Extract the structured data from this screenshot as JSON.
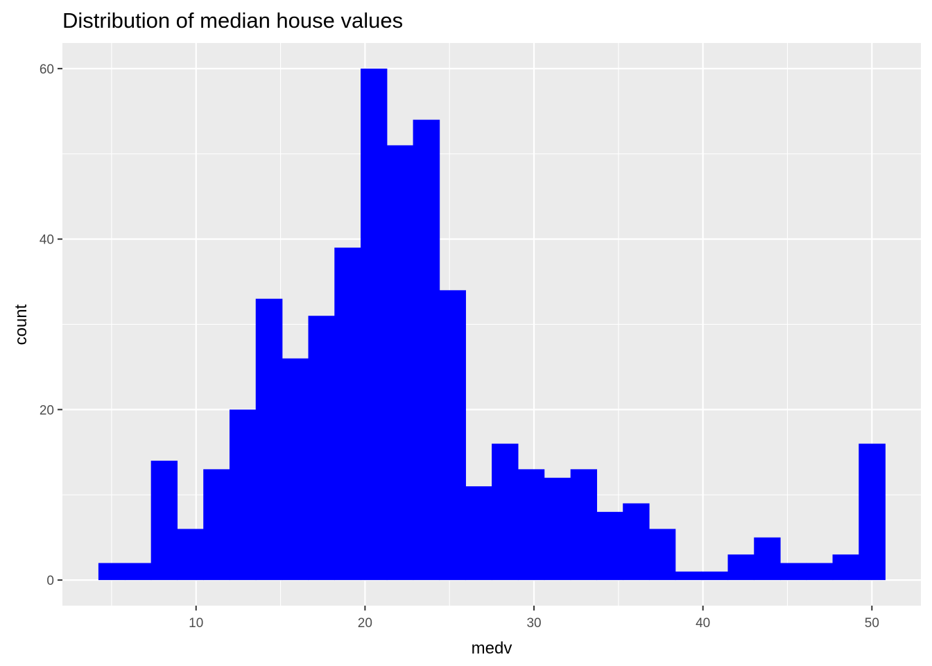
{
  "chart_data": {
    "type": "bar",
    "subtype": "histogram",
    "title": "Distribution of median house values",
    "xlabel": "medv",
    "ylabel": "count",
    "bin_width": 1.5517,
    "bins": [
      {
        "x0": 4.22,
        "x1": 5.78,
        "count": 2
      },
      {
        "x0": 5.78,
        "x1": 7.33,
        "count": 2
      },
      {
        "x0": 7.33,
        "x1": 8.88,
        "count": 14
      },
      {
        "x0": 8.88,
        "x1": 10.43,
        "count": 6
      },
      {
        "x0": 10.43,
        "x1": 11.98,
        "count": 13
      },
      {
        "x0": 11.98,
        "x1": 13.53,
        "count": 20
      },
      {
        "x0": 13.53,
        "x1": 15.09,
        "count": 33
      },
      {
        "x0": 15.09,
        "x1": 16.64,
        "count": 26
      },
      {
        "x0": 16.64,
        "x1": 18.19,
        "count": 31
      },
      {
        "x0": 18.19,
        "x1": 19.74,
        "count": 39
      },
      {
        "x0": 19.74,
        "x1": 21.29,
        "count": 60
      },
      {
        "x0": 21.29,
        "x1": 22.84,
        "count": 51
      },
      {
        "x0": 22.84,
        "x1": 24.4,
        "count": 54
      },
      {
        "x0": 24.4,
        "x1": 25.95,
        "count": 34
      },
      {
        "x0": 25.95,
        "x1": 27.5,
        "count": 11
      },
      {
        "x0": 27.5,
        "x1": 29.05,
        "count": 16
      },
      {
        "x0": 29.05,
        "x1": 30.6,
        "count": 13
      },
      {
        "x0": 30.6,
        "x1": 32.16,
        "count": 12
      },
      {
        "x0": 32.16,
        "x1": 33.71,
        "count": 13
      },
      {
        "x0": 33.71,
        "x1": 35.26,
        "count": 8
      },
      {
        "x0": 35.26,
        "x1": 36.81,
        "count": 9
      },
      {
        "x0": 36.81,
        "x1": 38.36,
        "count": 6
      },
      {
        "x0": 38.36,
        "x1": 39.91,
        "count": 1
      },
      {
        "x0": 39.91,
        "x1": 41.47,
        "count": 1
      },
      {
        "x0": 41.47,
        "x1": 43.02,
        "count": 3
      },
      {
        "x0": 43.02,
        "x1": 44.57,
        "count": 5
      },
      {
        "x0": 44.57,
        "x1": 46.12,
        "count": 2
      },
      {
        "x0": 46.12,
        "x1": 47.67,
        "count": 2
      },
      {
        "x0": 47.67,
        "x1": 49.22,
        "count": 3
      },
      {
        "x0": 49.22,
        "x1": 50.78,
        "count": 16
      }
    ],
    "xlim": [
      2.09,
      52.9
    ],
    "ylim": [
      -3.0,
      63.0
    ],
    "x_ticks": [
      10,
      20,
      30,
      40,
      50
    ],
    "x_tick_labels": [
      "10",
      "20",
      "30",
      "40",
      "50"
    ],
    "y_ticks": [
      0,
      20,
      40,
      60
    ],
    "y_tick_labels": [
      "0",
      "20",
      "40",
      "60"
    ],
    "x_minor_ticks": [
      5,
      15,
      25,
      35,
      45
    ],
    "y_minor_ticks": [
      10,
      30,
      50
    ],
    "grid": true,
    "legend": "none",
    "colors": {
      "bar_fill": "#0000FF",
      "panel_background": "#EBEBEB",
      "grid_line": "#FFFFFF",
      "tick_label": "#4D4D4D",
      "title_text": "#000000"
    }
  }
}
